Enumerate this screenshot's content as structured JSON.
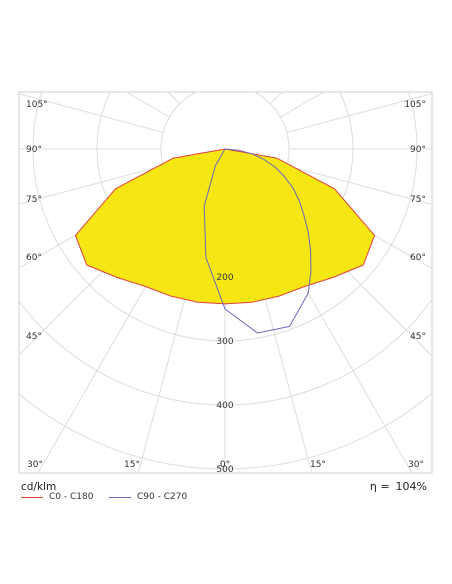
{
  "chart_data": {
    "type": "polar",
    "unit_label": "cd/klm",
    "efficiency_symbol": "η =",
    "efficiency_value": "104%",
    "radial_ticks": [
      "200",
      "300",
      "400",
      "500"
    ],
    "angle_labels_left": [
      "105°",
      "90°",
      "75°",
      "60°",
      "45°",
      "30°"
    ],
    "angle_labels_right": [
      "105°",
      "90°",
      "75°",
      "60°",
      "45°",
      "30°"
    ],
    "bottom_labels": [
      "30°",
      "15°",
      "0°",
      "15°",
      "30°"
    ],
    "rmax": 500,
    "fill_color": "#f5e614",
    "series": [
      {
        "name": "C0 - C180",
        "color": "#e04040",
        "filled": true,
        "angles": [
          0,
          10,
          20,
          30,
          40,
          50,
          60,
          70,
          80,
          90
        ],
        "values": [
          242,
          243,
          245,
          248,
          262,
          282,
          270,
          182,
          82,
          0
        ]
      },
      {
        "name": "C90 - C270",
        "color": "#6a6ab8",
        "filled": false,
        "angles": [
          -40,
          -30,
          -20,
          -10,
          0,
          10,
          20,
          30,
          35,
          40,
          45,
          50,
          55,
          60,
          65,
          70,
          75,
          80,
          85,
          90
        ],
        "values": [
          0,
          30,
          95,
          172,
          250,
          292,
          295,
          260,
          234,
          208,
          184,
          161,
          142,
          123,
          103,
          84,
          63,
          43,
          21,
          0
        ]
      }
    ]
  }
}
